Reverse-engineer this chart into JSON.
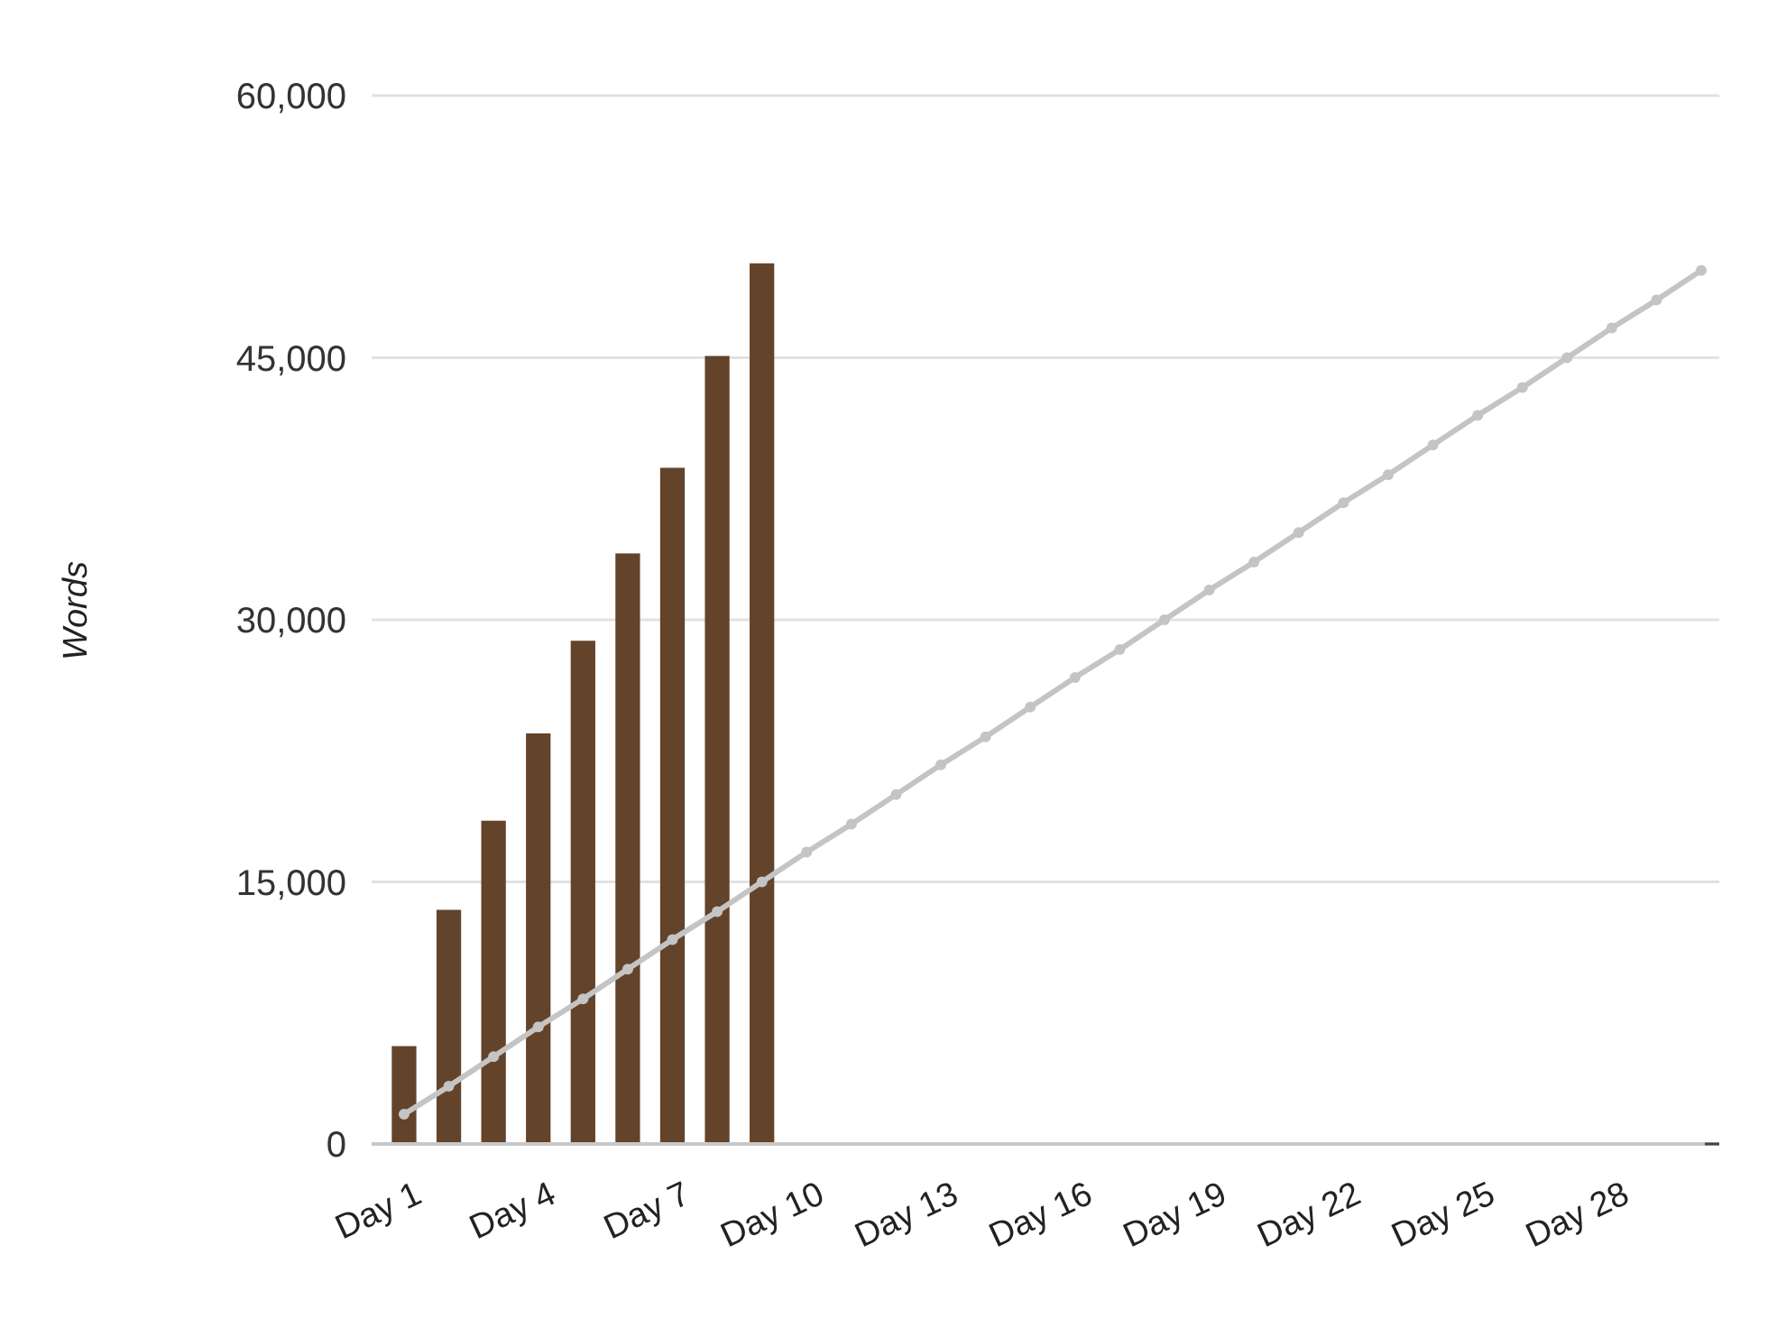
{
  "chart_data": {
    "type": "bar",
    "ylabel": "Words",
    "categories": [
      "Day 1",
      null,
      null,
      "Day 4",
      null,
      null,
      "Day 7",
      null,
      null,
      "Day 10",
      null,
      null,
      "Day 13",
      null,
      null,
      "Day 16",
      null,
      null,
      "Day 19",
      null,
      null,
      "Day 22",
      null,
      null,
      "Day 25",
      null,
      null,
      "Day 28",
      null,
      null
    ],
    "series": [
      {
        "color": "#63432a",
        "values": [
          5600,
          13400,
          18500,
          23500,
          28800,
          33800,
          38700,
          45100,
          50400,
          null,
          null,
          null,
          null,
          null,
          null,
          null,
          null,
          null,
          null,
          null,
          null,
          null,
          null,
          null,
          null,
          null,
          null,
          null,
          null,
          null
        ]
      },
      {
        "type": "line",
        "color": "#c4c4c4",
        "values": [
          1700,
          3300,
          5000,
          6700,
          8300,
          10000,
          11700,
          13300,
          15000,
          16700,
          18300,
          20000,
          21700,
          23300,
          25000,
          26700,
          28300,
          30000,
          31700,
          33300,
          35000,
          36700,
          38300,
          40000,
          41700,
          43300,
          45000,
          46700,
          48300,
          50000
        ]
      }
    ],
    "ylim": [
      0,
      60000
    ],
    "yticks": [
      {
        "value": 0,
        "label": "0"
      },
      {
        "value": 15000,
        "label": "15,000"
      },
      {
        "value": 30000,
        "label": "30,000"
      },
      {
        "value": 45000,
        "label": "45,000"
      },
      {
        "value": 60000,
        "label": "60,000"
      }
    ],
    "grid": "y",
    "marker": "circle",
    "line_style": "solid"
  }
}
